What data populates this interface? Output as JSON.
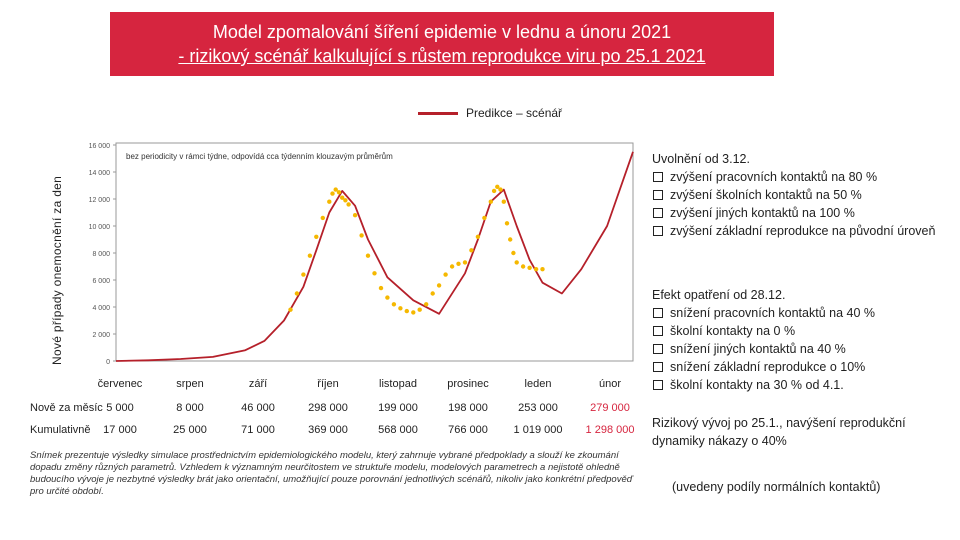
{
  "title": {
    "line1": "Model zpomalování šíření epidemie v lednu a únoru 2021",
    "line2": "- rizikový scénář kalkulující s růstem reprodukce viru po 25.1 2021"
  },
  "legend_label": "Predikce – scénář",
  "colors": {
    "accent": "#d6253f",
    "line": "#b5202a",
    "dots": "#f5b800"
  },
  "chart_data": {
    "type": "line",
    "ylabel": "Nové případy onemocnění za den",
    "annotation": "bez periodicity v rámci týdne, odpovídá cca týdenním klouzavým průměrům",
    "ylim": [
      0,
      16000
    ],
    "yticks": [
      "0",
      "2 000",
      "4 000",
      "6 000",
      "8 000",
      "10 000",
      "12 000",
      "14 000",
      "16 000"
    ],
    "months": [
      "červenec",
      "srpen",
      "září",
      "říjen",
      "listopad",
      "prosinec",
      "leden",
      "únor"
    ],
    "series": [
      {
        "name": "Predikce – scénář",
        "x": [
          0,
          0.5,
          1,
          1.5,
          2,
          2.3,
          2.6,
          2.9,
          3.1,
          3.3,
          3.5,
          3.7,
          3.9,
          4.2,
          4.6,
          5.0,
          5.4,
          5.6,
          5.8,
          6.0,
          6.2,
          6.4,
          6.6,
          6.9,
          7.2,
          7.6,
          8.0
        ],
        "y": [
          0,
          50,
          150,
          300,
          800,
          1500,
          3000,
          5500,
          8200,
          11000,
          12600,
          11500,
          9000,
          6200,
          4500,
          3500,
          6500,
          9000,
          11800,
          12700,
          10000,
          7500,
          5800,
          5000,
          6800,
          10000,
          15500
        ]
      },
      {
        "name": "",
        "style": "dots",
        "x": [
          2.7,
          2.8,
          2.9,
          3.0,
          3.1,
          3.2,
          3.3,
          3.35,
          3.4,
          3.45,
          3.5,
          3.55,
          3.6,
          3.7,
          3.8,
          3.9,
          4.0,
          4.1,
          4.2,
          4.3,
          4.4,
          4.5,
          4.6,
          4.7,
          4.8,
          4.9,
          5.0,
          5.1,
          5.2,
          5.3,
          5.4,
          5.5,
          5.6,
          5.7,
          5.8,
          5.85,
          5.9,
          5.95,
          6.0,
          6.05,
          6.1,
          6.15,
          6.2,
          6.3,
          6.4,
          6.5,
          6.6
        ],
        "y": [
          3800,
          5000,
          6400,
          7800,
          9200,
          10600,
          11800,
          12400,
          12700,
          12500,
          12100,
          11900,
          11600,
          10800,
          9300,
          7800,
          6500,
          5400,
          4700,
          4200,
          3900,
          3700,
          3600,
          3800,
          4200,
          5000,
          5600,
          6400,
          7000,
          7200,
          7300,
          8200,
          9200,
          10600,
          11800,
          12600,
          12900,
          12700,
          11800,
          10200,
          9000,
          8000,
          7300,
          7000,
          6900,
          6800,
          6800
        ]
      }
    ]
  },
  "table": {
    "rows": [
      {
        "label": "Nově za měsíc",
        "values": [
          "5 000",
          "8 000",
          "46 000",
          "298 000",
          "199 000",
          "198 000",
          "253 000",
          "279 000"
        ]
      },
      {
        "label": "Kumulativně",
        "values": [
          "17 000",
          "25 000",
          "71 000",
          "369 000",
          "568 000",
          "766 000",
          "1 019 000",
          "1 298 000"
        ]
      }
    ]
  },
  "note": "Snímek prezentuje výsledky simulace prostřednictvím epidemiologického modelu, který zahrnuje vybrané předpoklady a slouží ke zkoumání dopadu změny různých parametrů. Vzhledem k významným neurčitostem ve struktuře modelu, modelových parametrech a nejistotě ohledně budoucího vývoje je nezbytné výsledky brát jako orientační, umožňující pouze porovnání jednotlivých scénářů, nikoliv jako konkrétní předpověď pro určité období.",
  "right": {
    "block1": {
      "heading": "Uvolnění od 3.12.",
      "items": [
        "zvýšení pracovních kontaktů na 80 %",
        "zvýšení školních kontaktů na 50 %",
        "zvýšení jiných kontaktů na 100 %",
        "zvýšení základní reprodukce na původní úroveň"
      ]
    },
    "block2": {
      "heading": "Efekt opatření od 28.12.",
      "items": [
        "snížení pracovních kontaktů na 40 %",
        "školní kontakty na 0 %",
        "snížení jiných kontaktů na 40 %",
        "snížení základní reprodukce o 10%",
        "školní kontakty na 30 % od 4.1."
      ]
    },
    "block3": "Rizikový vývoj po 25.1., navýšení reprodukční dynamiky nákazy o 40%",
    "block4": "(uvedeny podíly normálních kontaktů)"
  }
}
